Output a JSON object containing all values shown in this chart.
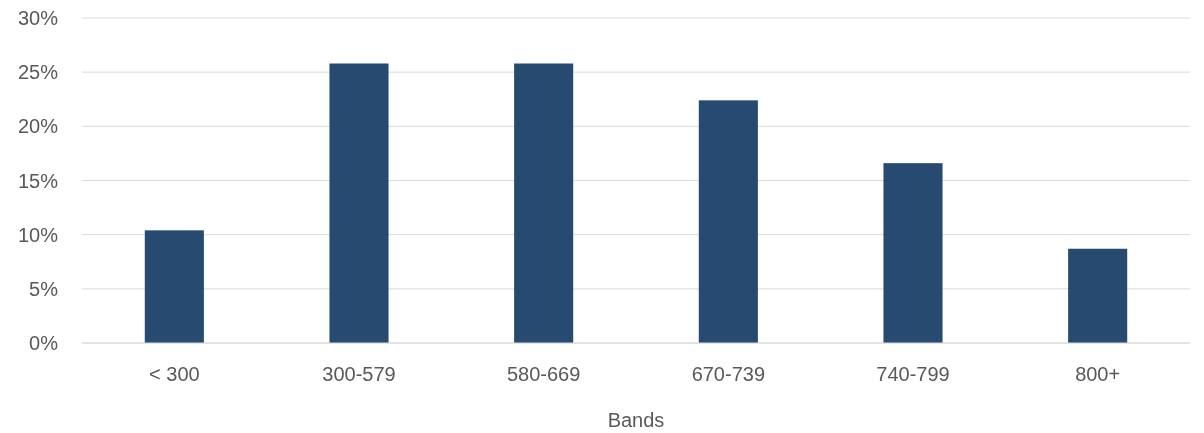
{
  "chart_data": {
    "type": "bar",
    "xlabel": "Bands",
    "categories": [
      "< 300",
      "300-579",
      "580-669",
      "670-739",
      "740-799",
      "800+"
    ],
    "values": [
      10.4,
      25.8,
      25.8,
      22.4,
      16.6,
      8.7
    ],
    "color": "#264a70",
    "ylim": [
      0,
      30
    ],
    "yticks": [
      {
        "value": 0,
        "label": "0%"
      },
      {
        "value": 5,
        "label": "5%"
      },
      {
        "value": 10,
        "label": "10%"
      },
      {
        "value": 15,
        "label": "15%"
      },
      {
        "value": 20,
        "label": "20%"
      },
      {
        "value": 25,
        "label": "25%"
      },
      {
        "value": 30,
        "label": "30%"
      }
    ],
    "grid": "y"
  }
}
